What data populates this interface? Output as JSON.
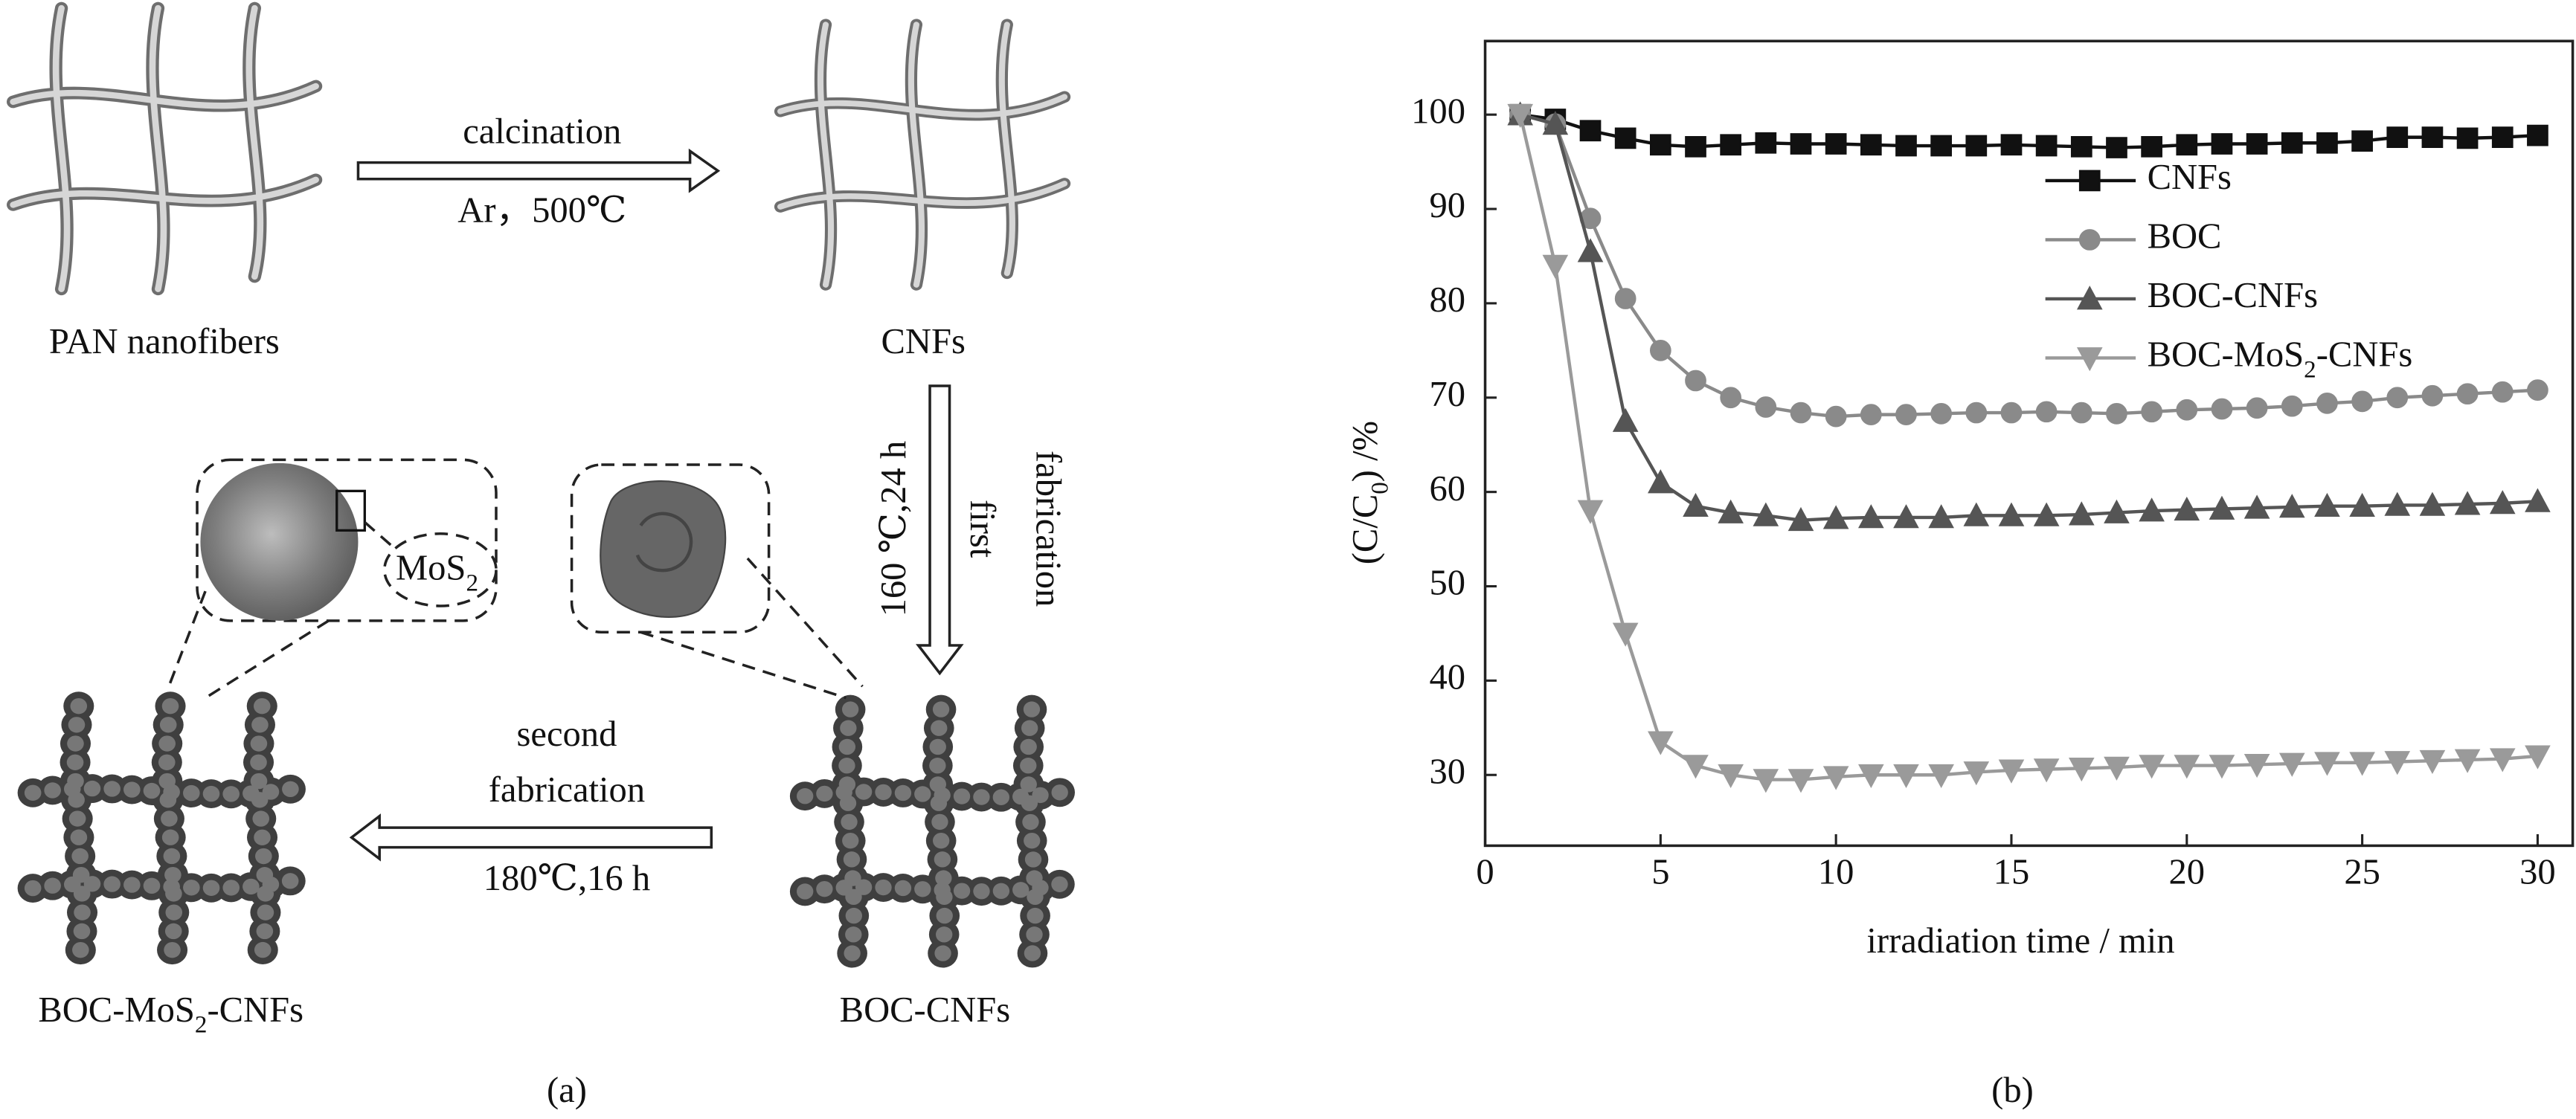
{
  "diagram": {
    "steps": {
      "calcination": "calcination",
      "calcination_condition": "Ar，500℃",
      "first_condition": "160 ℃,24 h",
      "first_lines": [
        "first",
        "fabrication"
      ],
      "second_lines": [
        "second",
        "fabrication"
      ],
      "second_condition": "180℃,16 h"
    },
    "labels": {
      "pan": "PAN nanofibers",
      "cnfs": "CNFs",
      "boc_cnfs": "BOC-CNFs",
      "boc_mos2_cnfs": "BOC-MoS2-CNFs",
      "mos2": "MoS2"
    },
    "caption": "(a)"
  },
  "chart_data": {
    "type": "line",
    "caption": "(b)",
    "x_label": "irradiation time / min",
    "y_label": "(C/C0) /%",
    "x": [
      1,
      2,
      3,
      4,
      5,
      6,
      7,
      8,
      9,
      10,
      11,
      12,
      13,
      14,
      15,
      16,
      17,
      18,
      19,
      20,
      21,
      22,
      23,
      24,
      25,
      26,
      27,
      28,
      29,
      30
    ],
    "series": [
      {
        "name": "CNFs",
        "color": "#111111",
        "marker": "square",
        "values": [
          100,
          99.5,
          98.3,
          97.5,
          96.8,
          96.6,
          96.8,
          97,
          96.9,
          96.9,
          96.8,
          96.7,
          96.7,
          96.7,
          96.8,
          96.7,
          96.6,
          96.5,
          96.6,
          96.8,
          96.9,
          96.9,
          97,
          97,
          97.2,
          97.6,
          97.6,
          97.5,
          97.6,
          97.8
        ]
      },
      {
        "name": "BOC",
        "color": "#8a8a8a",
        "marker": "circle",
        "values": [
          100,
          99,
          89,
          80.5,
          75,
          71.8,
          70,
          69,
          68.4,
          68,
          68.2,
          68.2,
          68.3,
          68.4,
          68.4,
          68.5,
          68.4,
          68.3,
          68.5,
          68.7,
          68.8,
          68.9,
          69.1,
          69.4,
          69.6,
          70,
          70.2,
          70.4,
          70.6,
          70.8
        ]
      },
      {
        "name": "BOC-CNFs",
        "color": "#555555",
        "marker": "triangle-up",
        "values": [
          100,
          99,
          85.5,
          67.5,
          61,
          58.5,
          57.8,
          57.5,
          57,
          57.2,
          57.3,
          57.3,
          57.3,
          57.5,
          57.5,
          57.5,
          57.6,
          57.8,
          58,
          58.1,
          58.2,
          58.3,
          58.4,
          58.5,
          58.5,
          58.6,
          58.6,
          58.7,
          58.8,
          59
        ]
      },
      {
        "name": "BOC-MoS2-CNFs",
        "color": "#9a9a9a",
        "marker": "triangle-down",
        "values": [
          100,
          84,
          58,
          45,
          33.5,
          31,
          30,
          29.5,
          29.5,
          29.8,
          30,
          30,
          30,
          30.3,
          30.5,
          30.6,
          30.7,
          30.8,
          31,
          31,
          31,
          31.1,
          31.2,
          31.3,
          31.3,
          31.4,
          31.5,
          31.6,
          31.7,
          32
        ]
      }
    ],
    "xlim": [
      0,
      31
    ],
    "ylim": [
      22.5,
      107.8
    ],
    "xticks": [
      0,
      5,
      10,
      15,
      20,
      25,
      30
    ],
    "yticks": [
      30,
      40,
      50,
      60,
      70,
      80,
      90,
      100
    ],
    "grid": false
  }
}
